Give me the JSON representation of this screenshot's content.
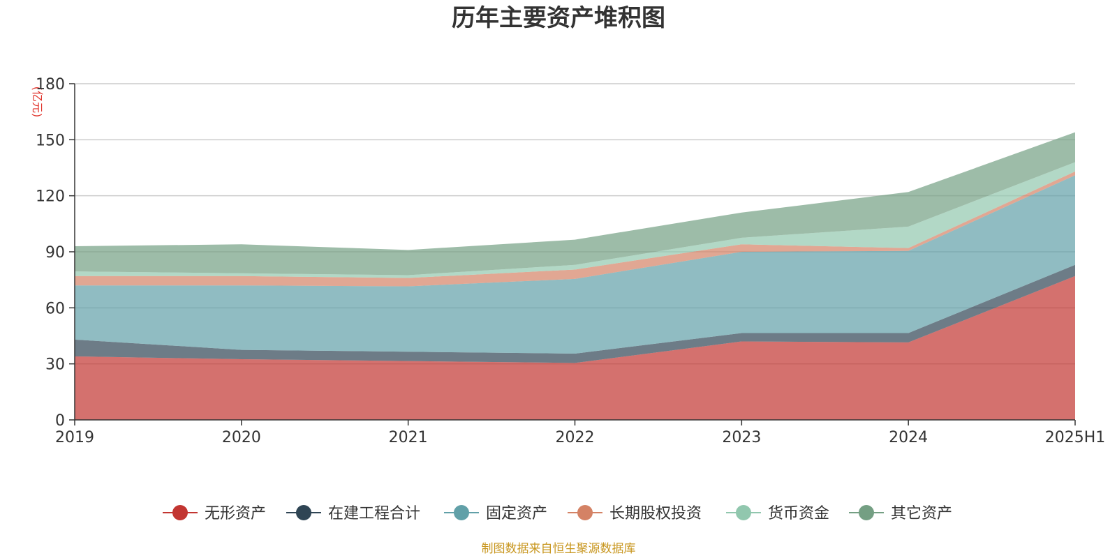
{
  "chart_data": {
    "type": "area",
    "stacked": true,
    "title": "历年主要资产堆积图",
    "unit_label": "(亿元)",
    "categories": [
      "2019",
      "2020",
      "2021",
      "2022",
      "2023",
      "2024",
      "2025H1"
    ],
    "ylim": [
      0,
      180
    ],
    "yticks": [
      0,
      30,
      60,
      90,
      120,
      150,
      180
    ],
    "grid": true,
    "legend_position": "bottom",
    "series": [
      {
        "name": "无形资产",
        "color": "#c23531",
        "values": [
          34,
          32.5,
          31.5,
          30.5,
          42,
          41.5,
          77
        ]
      },
      {
        "name": "在建工程合计",
        "color": "#2f4554",
        "values": [
          9,
          5,
          5,
          5,
          4.5,
          5,
          6
        ]
      },
      {
        "name": "固定资产",
        "color": "#61a0a8",
        "values": [
          29,
          34.5,
          35,
          40,
          43.5,
          44,
          48
        ]
      },
      {
        "name": "长期股权投资",
        "color": "#d48265",
        "values": [
          5,
          5,
          4.5,
          5,
          4,
          1.5,
          2
        ]
      },
      {
        "name": "货币资金",
        "color": "#91c7ae",
        "values": [
          2.5,
          1.5,
          1.5,
          2.5,
          3.5,
          11.5,
          5
        ]
      },
      {
        "name": "其它资产",
        "color": "#749f83",
        "values": [
          13.5,
          15.5,
          13.5,
          13.5,
          13.5,
          18.5,
          16
        ]
      }
    ],
    "source_note": "制图数据来自恒生聚源数据库"
  }
}
